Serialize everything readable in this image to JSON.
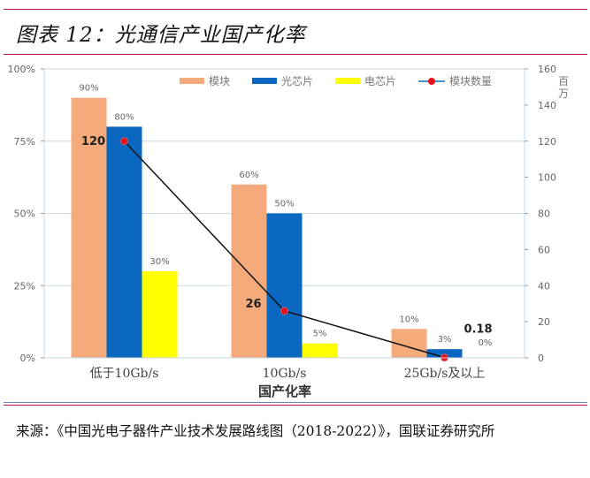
{
  "figure": {
    "title": "图表 12：光通信产业国产化率",
    "source": "来源：《中国光电子器件产业技术发展路线图（2018-2022）》，国联证券研究所"
  },
  "chart_data": {
    "type": "bar",
    "title": "光通信产业国产化率",
    "xlabel": "国产化率",
    "ylabel": "",
    "y2label": "百万",
    "categories": [
      "低于10Gb/s",
      "10Gb/s",
      "25Gb/s及以上"
    ],
    "ylim": [
      0,
      100
    ],
    "yticks": [
      "0%",
      "25%",
      "50%",
      "75%",
      "100%"
    ],
    "ytick_values": [
      0,
      25,
      50,
      75,
      100
    ],
    "y2lim": [
      0,
      160
    ],
    "y2ticks": [
      "0",
      "20",
      "40",
      "60",
      "80",
      "100",
      "120",
      "140",
      "160"
    ],
    "y2tick_values": [
      0,
      20,
      40,
      60,
      80,
      100,
      120,
      140,
      160
    ],
    "grid": true,
    "legend_position": "top-right",
    "series": [
      {
        "name": "模块",
        "type": "bar",
        "axis": "left",
        "color": "#f4aa7a",
        "values": [
          90,
          60,
          10
        ],
        "labels": [
          "90%",
          "60%",
          "10%"
        ]
      },
      {
        "name": "光芯片",
        "type": "bar",
        "axis": "left",
        "color": "#0a68c0",
        "values": [
          80,
          50,
          3
        ],
        "labels": [
          "80%",
          "50%",
          "3%"
        ]
      },
      {
        "name": "电芯片",
        "type": "bar",
        "axis": "left",
        "color": "#ffff00",
        "values": [
          30,
          5,
          0
        ],
        "labels": [
          "30%",
          "5%",
          "0%"
        ]
      },
      {
        "name": "模块数量",
        "type": "line",
        "axis": "right",
        "color": "#111111",
        "marker_color": "#e8101a",
        "values": [
          120,
          26,
          0.18
        ],
        "labels": [
          "120",
          "26",
          "0.18"
        ]
      }
    ]
  }
}
